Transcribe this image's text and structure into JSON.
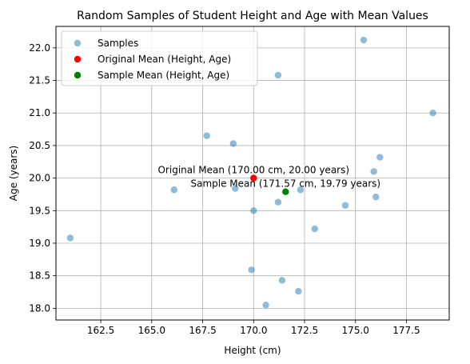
{
  "chart_data": {
    "type": "scatter",
    "title": "Random Samples of Student Height and Age with Mean Values",
    "xlabel": "Height (cm)",
    "ylabel": "Age (years)",
    "xlim": [
      160.3,
      179.6
    ],
    "ylim": [
      17.82,
      22.33
    ],
    "xticks": [
      162.5,
      165.0,
      167.5,
      170.0,
      172.5,
      175.0,
      177.5
    ],
    "xtick_labels": [
      "162.5",
      "165.0",
      "167.5",
      "170.0",
      "172.5",
      "175.0",
      "177.5"
    ],
    "yticks": [
      18.0,
      18.5,
      19.0,
      19.5,
      20.0,
      20.5,
      21.0,
      21.5,
      22.0
    ],
    "ytick_labels": [
      "18.0",
      "18.5",
      "19.0",
      "19.5",
      "20.0",
      "20.5",
      "21.0",
      "21.5",
      "22.0"
    ],
    "grid": true,
    "legend_position": "top-left",
    "series": [
      {
        "name": "Samples",
        "color": "#1f77b4",
        "alpha": 0.5,
        "points": [
          [
            161.0,
            19.08
          ],
          [
            166.1,
            19.82
          ],
          [
            167.7,
            20.65
          ],
          [
            169.0,
            20.53
          ],
          [
            169.1,
            19.84
          ],
          [
            169.9,
            18.59
          ],
          [
            170.0,
            19.5
          ],
          [
            170.6,
            18.05
          ],
          [
            171.2,
            21.58
          ],
          [
            171.2,
            19.63
          ],
          [
            171.4,
            18.43
          ],
          [
            172.2,
            18.26
          ],
          [
            172.3,
            19.82
          ],
          [
            173.0,
            19.22
          ],
          [
            174.5,
            19.58
          ],
          [
            175.4,
            22.12
          ],
          [
            175.9,
            20.1
          ],
          [
            176.0,
            19.71
          ],
          [
            176.2,
            20.32
          ],
          [
            178.8,
            21.0
          ]
        ]
      },
      {
        "name": "Original Mean (Height, Age)",
        "color": "#ff0000",
        "alpha": 1,
        "points": [
          [
            170.0,
            20.0
          ]
        ]
      },
      {
        "name": "Sample Mean (Height, Age)",
        "color": "#008000",
        "alpha": 1,
        "points": [
          [
            171.57,
            19.79
          ]
        ]
      }
    ],
    "annotations": [
      {
        "text": "Original Mean (170.00 cm, 20.00 years)",
        "x": 170.0,
        "y": 20.0,
        "dx_pts": 0,
        "dy_pts": 10
      },
      {
        "text": "Sample Mean (171.57 cm, 19.79 years)",
        "x": 171.57,
        "y": 19.79,
        "dx_pts": 0,
        "dy_pts": 10
      }
    ]
  }
}
